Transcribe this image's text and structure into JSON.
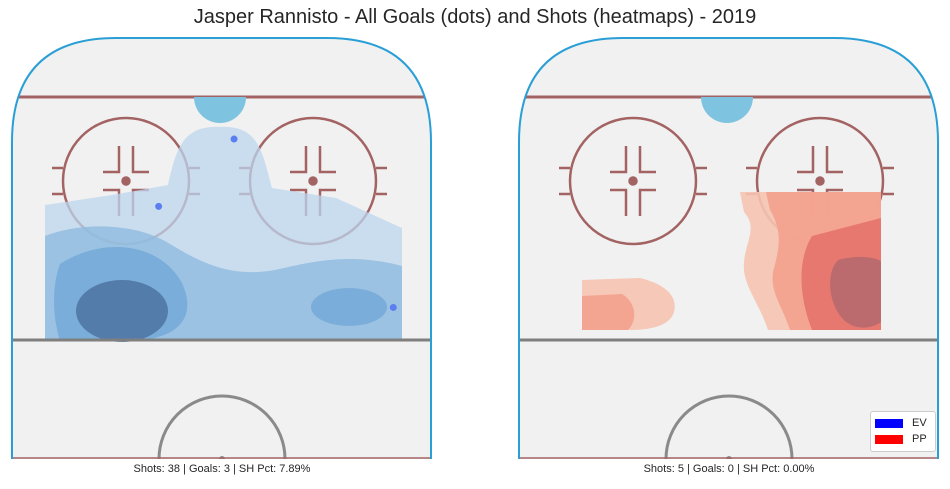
{
  "title": "Jasper Rannisto - All Goals (dots) and Shots (heatmaps) - 2019",
  "panels": [
    {
      "caption": "Shots: 38 | Goals: 3 | SH Pct: 7.89%",
      "shots": 38,
      "goals": 3,
      "sh_pct": "7.89%",
      "heatmap_color": "#4a8cc8"
    },
    {
      "caption": "Shots: 5 | Goals: 0 | SH Pct: 0.00%",
      "shots": 5,
      "goals": 0,
      "sh_pct": "0.00%",
      "heatmap_color": "#e0403a"
    }
  ],
  "legend": {
    "entries": [
      {
        "label": "EV",
        "color": "#0000ff"
      },
      {
        "label": "PP",
        "color": "#ff0000"
      }
    ],
    "placement": "bottom-right"
  },
  "colors": {
    "rink_fill": "#f1f1f1",
    "boards": "#2a9fd6",
    "faceoff": "#a36363",
    "blue_line": "#7f7f7f",
    "goal_crease": "#7ec3e0",
    "goal_dot": "#5b7ef0"
  },
  "chart_data": {
    "type": "heatmap",
    "series": [
      {
        "name": "EV",
        "panel": 0,
        "goals": [
          {
            "x": 0.53,
            "y": 0.24
          },
          {
            "x": 0.35,
            "y": 0.4
          },
          {
            "x": 0.91,
            "y": 0.64
          }
        ]
      },
      {
        "name": "PP",
        "panel": 1,
        "goals": []
      }
    ]
  }
}
